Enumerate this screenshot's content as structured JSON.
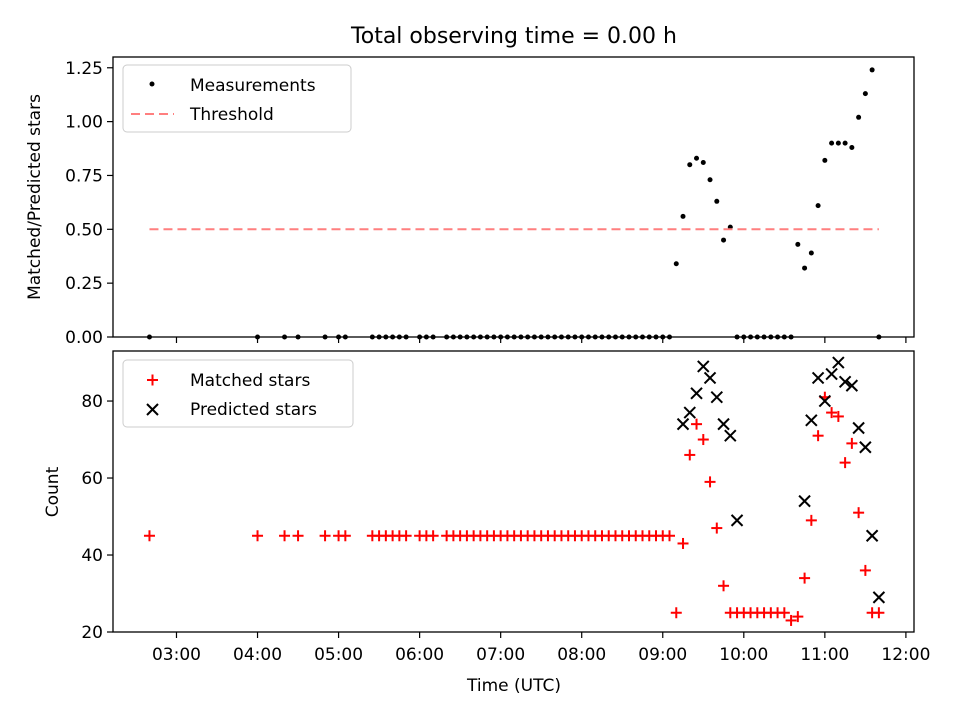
{
  "figure": {
    "title": "Total observing time = 0.00 h"
  },
  "chart_data": [
    {
      "type": "scatter",
      "ylabel": "Matched/Predicted stars",
      "xlabel": "",
      "xlim": [
        "02:13",
        "12:06"
      ],
      "ylim": [
        0,
        1.3
      ],
      "yticks": [
        0.0,
        0.25,
        0.5,
        0.75,
        1.0,
        1.25
      ],
      "ytick_labels": [
        "0.00",
        "0.25",
        "0.50",
        "0.75",
        "1.00",
        "1.25"
      ],
      "xticks": [
        "03:00",
        "04:00",
        "05:00",
        "06:00",
        "07:00",
        "08:00",
        "09:00",
        "10:00",
        "11:00",
        "12:00"
      ],
      "grid": false,
      "legend_position": "top-left",
      "series": [
        {
          "name": "Measurements",
          "kind": "scatter",
          "color": "#000000",
          "marker": "dot",
          "x": [
            "02:40",
            "04:00",
            "04:20",
            "04:30",
            "04:50",
            "05:00",
            "05:05",
            "05:25",
            "05:30",
            "05:35",
            "05:40",
            "05:45",
            "05:50",
            "06:00",
            "06:05",
            "06:10",
            "06:20",
            "06:25",
            "06:30",
            "06:35",
            "06:40",
            "06:45",
            "06:50",
            "06:55",
            "07:00",
            "07:05",
            "07:10",
            "07:15",
            "07:20",
            "07:25",
            "07:30",
            "07:35",
            "07:40",
            "07:45",
            "07:50",
            "07:55",
            "08:00",
            "08:05",
            "08:10",
            "08:15",
            "08:20",
            "08:25",
            "08:30",
            "08:35",
            "08:40",
            "08:45",
            "08:50",
            "08:55",
            "09:00",
            "09:05",
            "09:10",
            "09:15",
            "09:20",
            "09:25",
            "09:30",
            "09:35",
            "09:40",
            "09:45",
            "09:50",
            "09:55",
            "10:00",
            "10:05",
            "10:10",
            "10:15",
            "10:20",
            "10:25",
            "10:30",
            "10:35",
            "10:40",
            "10:45",
            "10:50",
            "10:55",
            "11:00",
            "11:05",
            "11:10",
            "11:15",
            "11:20",
            "11:25",
            "11:30",
            "11:35",
            "11:40"
          ],
          "y": [
            0,
            0,
            0,
            0,
            0,
            0,
            0,
            0,
            0,
            0,
            0,
            0,
            0,
            0,
            0,
            0,
            0,
            0,
            0,
            0,
            0,
            0,
            0,
            0,
            0,
            0,
            0,
            0,
            0,
            0,
            0,
            0,
            0,
            0,
            0,
            0,
            0,
            0,
            0,
            0,
            0,
            0,
            0,
            0,
            0,
            0,
            0,
            0,
            0,
            0,
            0.34,
            0.56,
            0.8,
            0.83,
            0.81,
            0.73,
            0.63,
            0.45,
            0.51,
            0,
            0,
            0,
            0,
            0,
            0,
            0,
            0,
            0,
            0.43,
            0.32,
            0.39,
            0.61,
            0.82,
            0.9,
            0.9,
            0.9,
            0.88,
            1.02,
            1.13,
            1.24,
            0
          ]
        },
        {
          "name": "Threshold",
          "kind": "line",
          "color": "#ff7f7f",
          "style": "dashed",
          "x": [
            "02:40",
            "11:40"
          ],
          "y": [
            0.5,
            0.5
          ]
        }
      ]
    },
    {
      "type": "scatter",
      "ylabel": "Count",
      "xlabel": "Time (UTC)",
      "xlim": [
        "02:13",
        "12:06"
      ],
      "ylim": [
        20,
        93
      ],
      "yticks": [
        20,
        40,
        60,
        80
      ],
      "ytick_labels": [
        "20",
        "40",
        "60",
        "80"
      ],
      "xticks": [
        "03:00",
        "04:00",
        "05:00",
        "06:00",
        "07:00",
        "08:00",
        "09:00",
        "10:00",
        "11:00",
        "12:00"
      ],
      "grid": false,
      "legend_position": "top-left",
      "series": [
        {
          "name": "Matched stars",
          "kind": "scatter",
          "color": "#ff0000",
          "marker": "plus",
          "x": [
            "02:40",
            "04:00",
            "04:20",
            "04:30",
            "04:50",
            "05:00",
            "05:05",
            "05:25",
            "05:30",
            "05:35",
            "05:40",
            "05:45",
            "05:50",
            "06:00",
            "06:05",
            "06:10",
            "06:20",
            "06:25",
            "06:30",
            "06:35",
            "06:40",
            "06:45",
            "06:50",
            "06:55",
            "07:00",
            "07:05",
            "07:10",
            "07:15",
            "07:20",
            "07:25",
            "07:30",
            "07:35",
            "07:40",
            "07:45",
            "07:50",
            "07:55",
            "08:00",
            "08:05",
            "08:10",
            "08:15",
            "08:20",
            "08:25",
            "08:30",
            "08:35",
            "08:40",
            "08:45",
            "08:50",
            "08:55",
            "09:00",
            "09:05",
            "09:10",
            "09:15",
            "09:20",
            "09:25",
            "09:30",
            "09:35",
            "09:40",
            "09:45",
            "09:50",
            "09:55",
            "10:00",
            "10:05",
            "10:10",
            "10:15",
            "10:20",
            "10:25",
            "10:30",
            "10:35",
            "10:40",
            "10:45",
            "10:50",
            "10:55",
            "11:00",
            "11:05",
            "11:10",
            "11:15",
            "11:20",
            "11:25",
            "11:30",
            "11:35",
            "11:40"
          ],
          "y": [
            45,
            45,
            45,
            45,
            45,
            45,
            45,
            45,
            45,
            45,
            45,
            45,
            45,
            45,
            45,
            45,
            45,
            45,
            45,
            45,
            45,
            45,
            45,
            45,
            45,
            45,
            45,
            45,
            45,
            45,
            45,
            45,
            45,
            45,
            45,
            45,
            45,
            45,
            45,
            45,
            45,
            45,
            45,
            45,
            45,
            45,
            45,
            45,
            45,
            45,
            25,
            43,
            66,
            74,
            70,
            59,
            47,
            32,
            25,
            25,
            25,
            25,
            25,
            25,
            25,
            25,
            25,
            23,
            24,
            34,
            49,
            71,
            81,
            77,
            76,
            64,
            69,
            51,
            36,
            25,
            25
          ]
        },
        {
          "name": "Predicted stars",
          "kind": "scatter",
          "color": "#000000",
          "marker": "x",
          "x": [
            "09:15",
            "09:20",
            "09:25",
            "09:30",
            "09:35",
            "09:40",
            "09:45",
            "09:50",
            "09:55",
            "10:45",
            "10:50",
            "10:55",
            "11:00",
            "11:05",
            "11:10",
            "11:15",
            "11:20",
            "11:25",
            "11:30",
            "11:35",
            "11:40"
          ],
          "y": [
            74,
            77,
            82,
            89,
            86,
            81,
            74,
            71,
            49,
            54,
            75,
            86,
            80,
            87,
            90,
            85,
            84,
            73,
            68,
            45,
            29
          ]
        }
      ]
    }
  ]
}
